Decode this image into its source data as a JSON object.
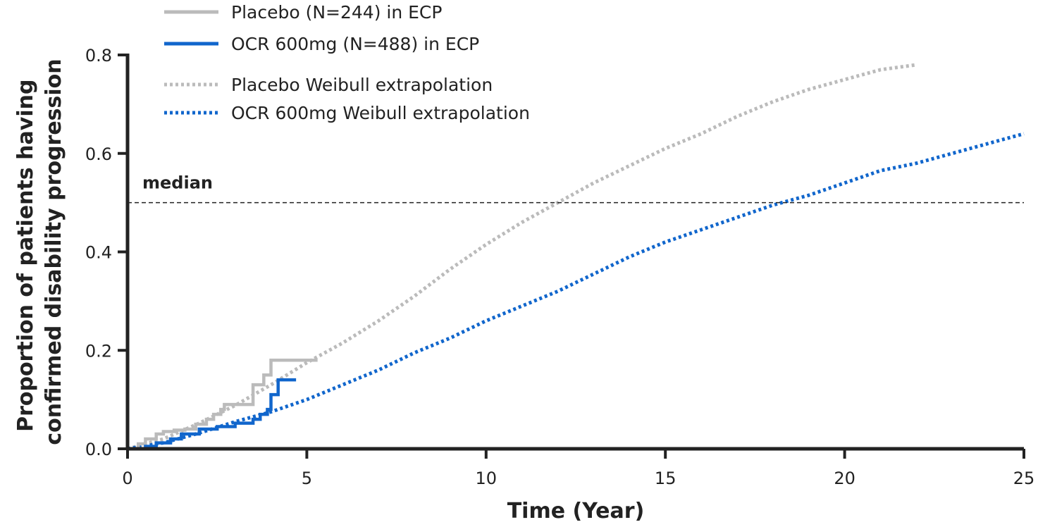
{
  "chart_data": {
    "type": "line",
    "xlabel": "Time (Year)",
    "ylabel_lines": [
      "Proportion of patients having",
      "confirmed disability progression"
    ],
    "xlim": [
      0,
      25
    ],
    "ylim": [
      0,
      0.8
    ],
    "x_ticks": [
      0,
      5,
      10,
      15,
      20,
      25
    ],
    "y_ticks": [
      0.0,
      0.2,
      0.4,
      0.6,
      0.8
    ],
    "x_tick_labels": [
      "0",
      "5",
      "10",
      "15",
      "20",
      "25"
    ],
    "y_tick_labels": [
      "0.0",
      "0.2",
      "0.4",
      "0.6",
      "0.8"
    ],
    "grid": false,
    "legend_position": "top-left",
    "reference_line": {
      "label": "median",
      "y": 0.5
    },
    "series": [
      {
        "name": "Placebo (N=244) in ECP",
        "style": "step",
        "color": "#bbbbbb",
        "points": [
          [
            0,
            0
          ],
          [
            0.3,
            0.01
          ],
          [
            0.5,
            0.02
          ],
          [
            0.8,
            0.03
          ],
          [
            1.0,
            0.035
          ],
          [
            1.3,
            0.038
          ],
          [
            1.6,
            0.04
          ],
          [
            1.9,
            0.05
          ],
          [
            2.2,
            0.06
          ],
          [
            2.4,
            0.07
          ],
          [
            2.6,
            0.08
          ],
          [
            2.7,
            0.09
          ],
          [
            3.1,
            0.09
          ],
          [
            3.5,
            0.09
          ],
          [
            3.5,
            0.13
          ],
          [
            3.8,
            0.15
          ],
          [
            4.0,
            0.18
          ],
          [
            5.3,
            0.18
          ]
        ]
      },
      {
        "name": "OCR 600mg (N=488) in ECP",
        "style": "step",
        "color": "#1166cc",
        "points": [
          [
            0,
            0
          ],
          [
            0.5,
            0.005
          ],
          [
            0.8,
            0.012
          ],
          [
            1.2,
            0.02
          ],
          [
            1.5,
            0.03
          ],
          [
            2.0,
            0.04
          ],
          [
            2.5,
            0.045
          ],
          [
            3.0,
            0.052
          ],
          [
            3.5,
            0.06
          ],
          [
            3.7,
            0.07
          ],
          [
            3.9,
            0.08
          ],
          [
            4.0,
            0.11
          ],
          [
            4.2,
            0.14
          ],
          [
            4.7,
            0.14
          ]
        ]
      },
      {
        "name": "Placebo Weibull extrapolation",
        "style": "dotted",
        "color": "#bbbbbb",
        "points": [
          [
            0,
            0
          ],
          [
            1,
            0.02
          ],
          [
            2,
            0.052
          ],
          [
            3,
            0.088
          ],
          [
            4,
            0.13
          ],
          [
            5,
            0.175
          ],
          [
            6,
            0.215
          ],
          [
            7,
            0.26
          ],
          [
            8,
            0.31
          ],
          [
            9,
            0.365
          ],
          [
            10,
            0.415
          ],
          [
            11,
            0.46
          ],
          [
            12,
            0.5
          ],
          [
            13,
            0.54
          ],
          [
            14,
            0.575
          ],
          [
            15,
            0.61
          ],
          [
            16,
            0.64
          ],
          [
            17,
            0.675
          ],
          [
            18,
            0.705
          ],
          [
            19,
            0.73
          ],
          [
            20,
            0.75
          ],
          [
            21,
            0.77
          ],
          [
            22,
            0.78
          ]
        ]
      },
      {
        "name": "OCR 600mg Weibull extrapolation",
        "style": "dotted",
        "color": "#1166cc",
        "points": [
          [
            0,
            0
          ],
          [
            1,
            0.012
          ],
          [
            2,
            0.032
          ],
          [
            3,
            0.055
          ],
          [
            4,
            0.075
          ],
          [
            5,
            0.1
          ],
          [
            6,
            0.13
          ],
          [
            7,
            0.16
          ],
          [
            8,
            0.195
          ],
          [
            9,
            0.225
          ],
          [
            10,
            0.26
          ],
          [
            11,
            0.29
          ],
          [
            12,
            0.32
          ],
          [
            13,
            0.355
          ],
          [
            14,
            0.39
          ],
          [
            15,
            0.42
          ],
          [
            16,
            0.445
          ],
          [
            17,
            0.47
          ],
          [
            18,
            0.495
          ],
          [
            19,
            0.515
          ],
          [
            20,
            0.54
          ],
          [
            21,
            0.565
          ],
          [
            22,
            0.58
          ],
          [
            23,
            0.6
          ],
          [
            24,
            0.62
          ],
          [
            25,
            0.64
          ]
        ]
      }
    ]
  }
}
